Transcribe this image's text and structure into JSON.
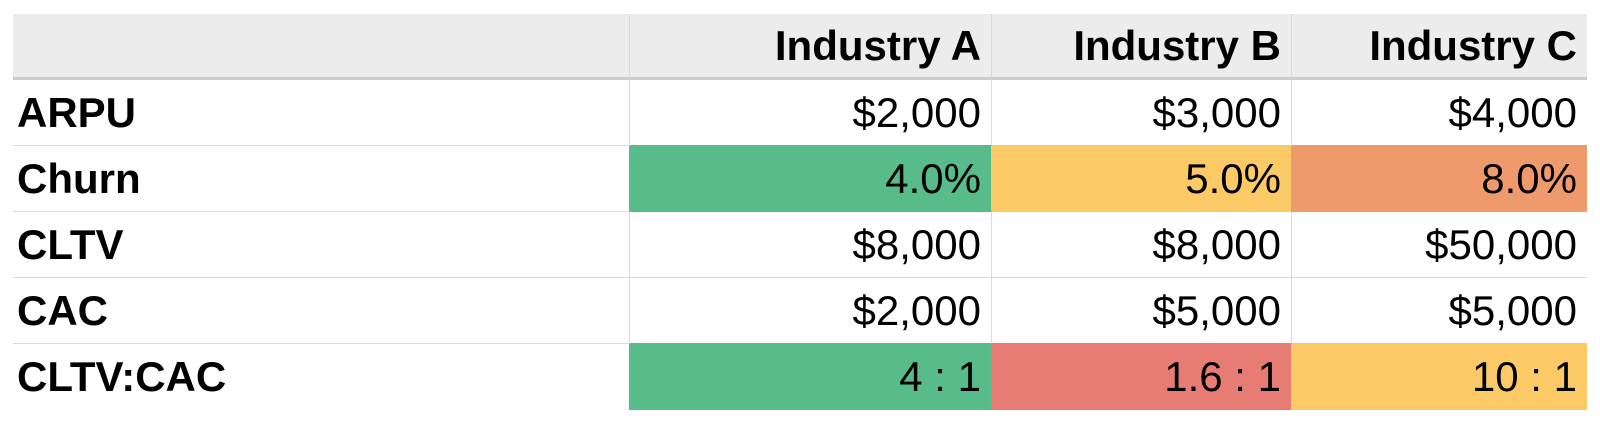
{
  "colors": {
    "good_green": "#57bb8a",
    "warn_yellow": "#fbc966",
    "alert_orange": "#ef9a6d",
    "bad_red": "#e67c73",
    "header_bg": "#ececec",
    "gridline": "#dadada",
    "header_border": "#cccccc",
    "text": "#000000"
  },
  "table": {
    "corner_label": "",
    "columns": [
      {
        "label": "Industry A"
      },
      {
        "label": "Industry B"
      },
      {
        "label": "Industry C"
      }
    ],
    "rows": [
      {
        "label": "ARPU",
        "cells": [
          {
            "value": "$2,000"
          },
          {
            "value": "$3,000"
          },
          {
            "value": "$4,000"
          }
        ]
      },
      {
        "label": "Churn",
        "cells": [
          {
            "value": "4.0%",
            "bg": "#57bb8a"
          },
          {
            "value": "5.0%",
            "bg": "#fbc966"
          },
          {
            "value": "8.0%",
            "bg": "#ef9a6d"
          }
        ]
      },
      {
        "label": "CLTV",
        "cells": [
          {
            "value": "$8,000"
          },
          {
            "value": "$8,000"
          },
          {
            "value": "$50,000"
          }
        ]
      },
      {
        "label": "CAC",
        "cells": [
          {
            "value": "$2,000"
          },
          {
            "value": "$5,000"
          },
          {
            "value": "$5,000"
          }
        ]
      },
      {
        "label": "CLTV:CAC",
        "cells": [
          {
            "value": "4 : 1",
            "bg": "#57bb8a"
          },
          {
            "value": "1.6 : 1",
            "bg": "#e67c73"
          },
          {
            "value": "10 : 1",
            "bg": "#fbc966"
          }
        ]
      }
    ]
  },
  "chart_data": {
    "type": "table",
    "columns": [
      "",
      "Industry A",
      "Industry B",
      "Industry C"
    ],
    "rows": [
      [
        "ARPU",
        "$2,000",
        "$3,000",
        "$4,000"
      ],
      [
        "Churn",
        "4.0%",
        "5.0%",
        "8.0%"
      ],
      [
        "CLTV",
        "$8,000",
        "$8,000",
        "$50,000"
      ],
      [
        "CAC",
        "$2,000",
        "$5,000",
        "$5,000"
      ],
      [
        "CLTV:CAC",
        "4 : 1",
        "1.6 : 1",
        "10 : 1"
      ]
    ],
    "cell_highlights": [
      {
        "row": "Churn",
        "column": "Industry A",
        "color": "#57bb8a",
        "meaning": "good"
      },
      {
        "row": "Churn",
        "column": "Industry B",
        "color": "#fbc966",
        "meaning": "medium"
      },
      {
        "row": "Churn",
        "column": "Industry C",
        "color": "#ef9a6d",
        "meaning": "poor"
      },
      {
        "row": "CLTV:CAC",
        "column": "Industry A",
        "color": "#57bb8a",
        "meaning": "good"
      },
      {
        "row": "CLTV:CAC",
        "column": "Industry B",
        "color": "#e67c73",
        "meaning": "bad"
      },
      {
        "row": "CLTV:CAC",
        "column": "Industry C",
        "color": "#fbc966",
        "meaning": "medium"
      }
    ],
    "layout": {
      "header_background": "#ececec",
      "gridlines": true,
      "value_alignment": "right"
    }
  }
}
